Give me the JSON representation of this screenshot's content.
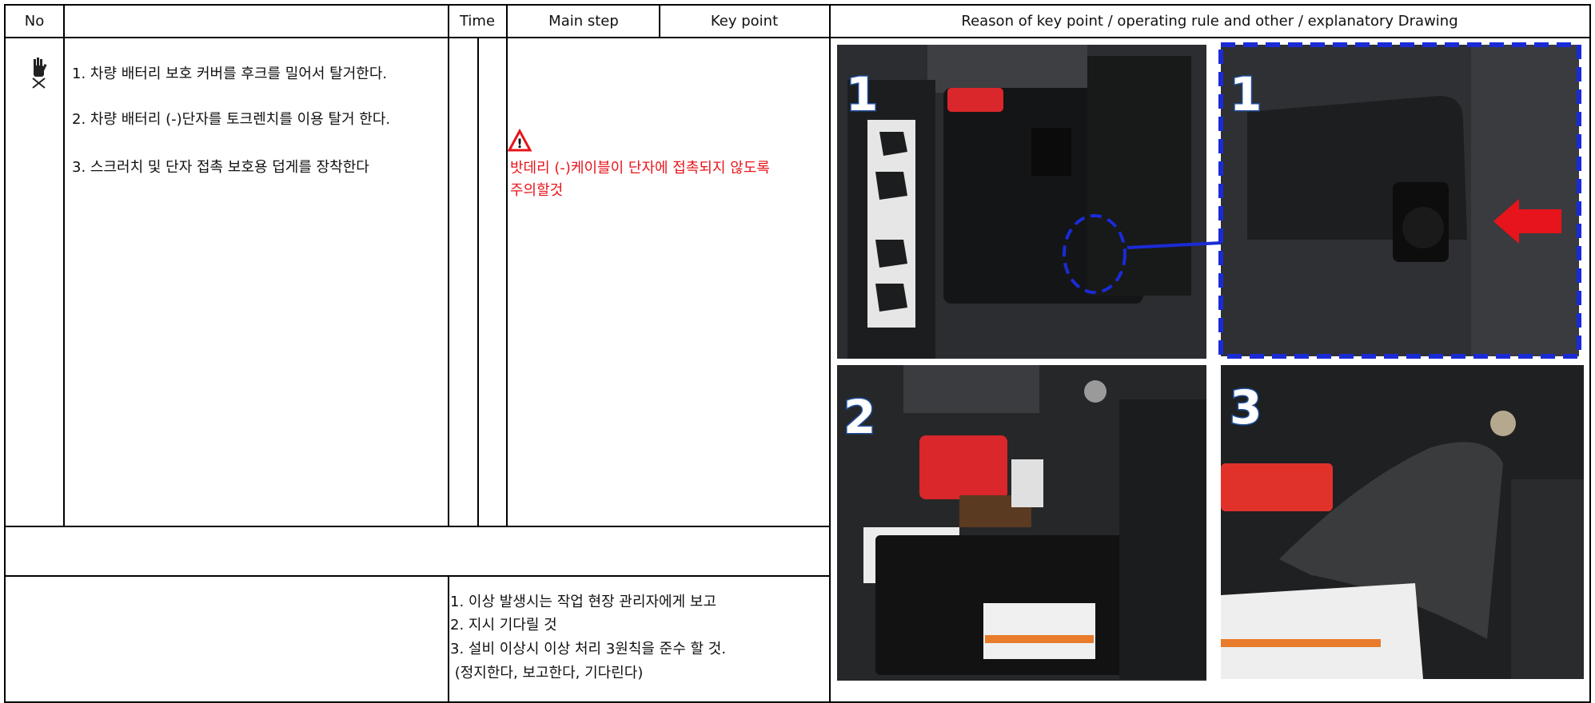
{
  "header": {
    "no": "No",
    "time": "Time",
    "main_step": "Main step",
    "key_point": "Key point",
    "reason": "Reason of key point / operating rule and other / explanatory Drawing"
  },
  "steps": [
    "1. 차량 배터리 보호 커버를 후크를 밀어서 탈거한다.",
    "2. 차량 배터리 (-)단자를 토크렌치를 이용 탈거 한다.",
    "3. 스크러치 및 단자 접촉 보호용 덥게를 장착한다"
  ],
  "key_point": {
    "lines": [
      "밧데리 (-)케이블이 단자에 접촉되지 않도록",
      "주의할것"
    ]
  },
  "footer_notes": [
    "1. 이상 발생시는 작업 현장 관리자에게 보고",
    "2. 지시 기다릴 것",
    "3. 설비 이상시 이상 처리 3원칙을 준수 할 것.",
    " (정지한다, 보고한다, 기다린다)"
  ],
  "photos": [
    {
      "label": "1"
    },
    {
      "label": "1"
    },
    {
      "label": "2"
    },
    {
      "label": "3"
    }
  ]
}
